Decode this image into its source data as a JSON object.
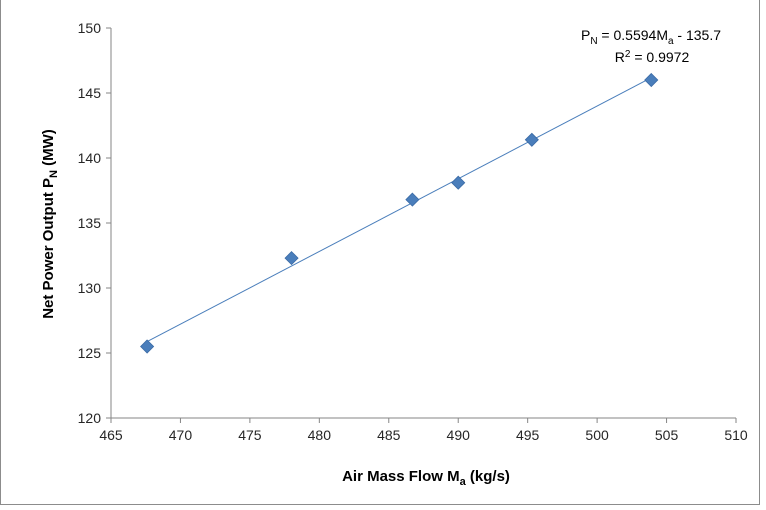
{
  "chart_data": {
    "type": "scatter",
    "title": "",
    "xlabel": {
      "main": "Air Mass Flow M",
      "sub": "a",
      "tail": " (kg/s)"
    },
    "ylabel": {
      "main": "Net Power Output P",
      "sub": "N",
      "tail": " (MW)"
    },
    "xlim": [
      465,
      510
    ],
    "ylim": [
      120,
      150
    ],
    "x_ticks": [
      465,
      470,
      475,
      480,
      485,
      490,
      495,
      500,
      505,
      510
    ],
    "y_ticks": [
      120,
      125,
      130,
      135,
      140,
      145,
      150
    ],
    "series": [
      {
        "marker": "diamond",
        "color": "#4a7ebb",
        "x": [
          467.6,
          478.0,
          486.7,
          490.0,
          495.3,
          503.9
        ],
        "y": [
          125.5,
          132.3,
          136.8,
          138.1,
          141.4,
          146.0
        ]
      }
    ],
    "trendline": {
      "type": "linear",
      "color": "#4a7ebb",
      "slope": 0.5594,
      "intercept": -135.7,
      "x_range": [
        467.6,
        503.9
      ],
      "equation": {
        "p": "P",
        "p_sub": "N",
        "mid": " = 0.5594M",
        "m_sub": "a",
        "tail": " - 135.7"
      },
      "r2": {
        "r": "R",
        "sup": "2",
        "tail": " = 0.9972"
      }
    },
    "grid": false,
    "legend": "none"
  }
}
